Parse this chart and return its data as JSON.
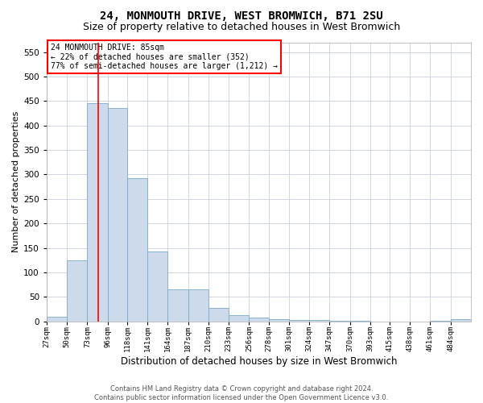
{
  "title": "24, MONMOUTH DRIVE, WEST BROMWICH, B71 2SU",
  "subtitle": "Size of property relative to detached houses in West Bromwich",
  "xlabel": "Distribution of detached houses by size in West Bromwich",
  "ylabel": "Number of detached properties",
  "bar_color": "#cddaeb",
  "bar_edge_color": "#7aaac8",
  "background_color": "#ffffff",
  "grid_color": "#c8d0dc",
  "annotation_text": "24 MONMOUTH DRIVE: 85sqm\n← 22% of detached houses are smaller (352)\n77% of semi-detached houses are larger (1,212) →",
  "red_line_x": 85,
  "categories": [
    "27sqm",
    "50sqm",
    "73sqm",
    "96sqm",
    "118sqm",
    "141sqm",
    "164sqm",
    "187sqm",
    "210sqm",
    "233sqm",
    "256sqm",
    "278sqm",
    "301sqm",
    "324sqm",
    "347sqm",
    "370sqm",
    "393sqm",
    "415sqm",
    "438sqm",
    "461sqm",
    "484sqm"
  ],
  "bin_edges": [
    27,
    50,
    73,
    96,
    118,
    141,
    164,
    187,
    210,
    233,
    256,
    278,
    301,
    324,
    347,
    370,
    393,
    415,
    438,
    461,
    484,
    507
  ],
  "values": [
    10,
    125,
    445,
    435,
    293,
    143,
    65,
    65,
    27,
    13,
    8,
    5,
    3,
    2,
    1,
    1,
    0,
    0,
    0,
    1,
    5
  ],
  "ylim": [
    0,
    570
  ],
  "yticks": [
    0,
    50,
    100,
    150,
    200,
    250,
    300,
    350,
    400,
    450,
    500,
    550
  ],
  "footer_text": "Contains HM Land Registry data © Crown copyright and database right 2024.\nContains public sector information licensed under the Open Government Licence v3.0.",
  "title_fontsize": 10,
  "subtitle_fontsize": 9,
  "xlabel_fontsize": 8.5,
  "ylabel_fontsize": 8
}
